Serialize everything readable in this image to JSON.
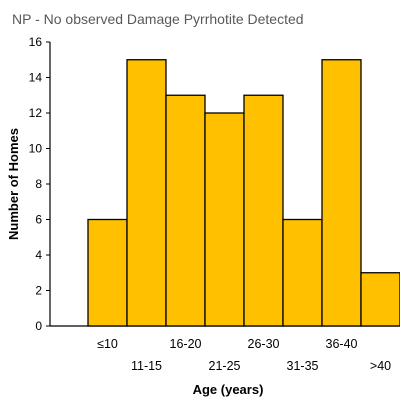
{
  "chart_data": {
    "type": "bar",
    "title": "NP - No observed Damage Pyrrhotite Detected",
    "xlabel": "Age (years)",
    "ylabel": "Number of Homes",
    "categories": [
      "≤10",
      "11-15",
      "16-20",
      "21-25",
      "26-30",
      "31-35",
      "36-40",
      ">40"
    ],
    "values": [
      6,
      15,
      13,
      12,
      13,
      6,
      15,
      3
    ],
    "ylim": [
      0,
      16
    ],
    "yticks": [
      "0",
      "2",
      "4",
      "6",
      "8",
      "10",
      "12",
      "14",
      "16"
    ],
    "grid": false,
    "legend": "none",
    "bar_color": "#FFC000",
    "bar_edge_color": "#000000",
    "title_color": "#595959",
    "text_color": "#000000"
  }
}
